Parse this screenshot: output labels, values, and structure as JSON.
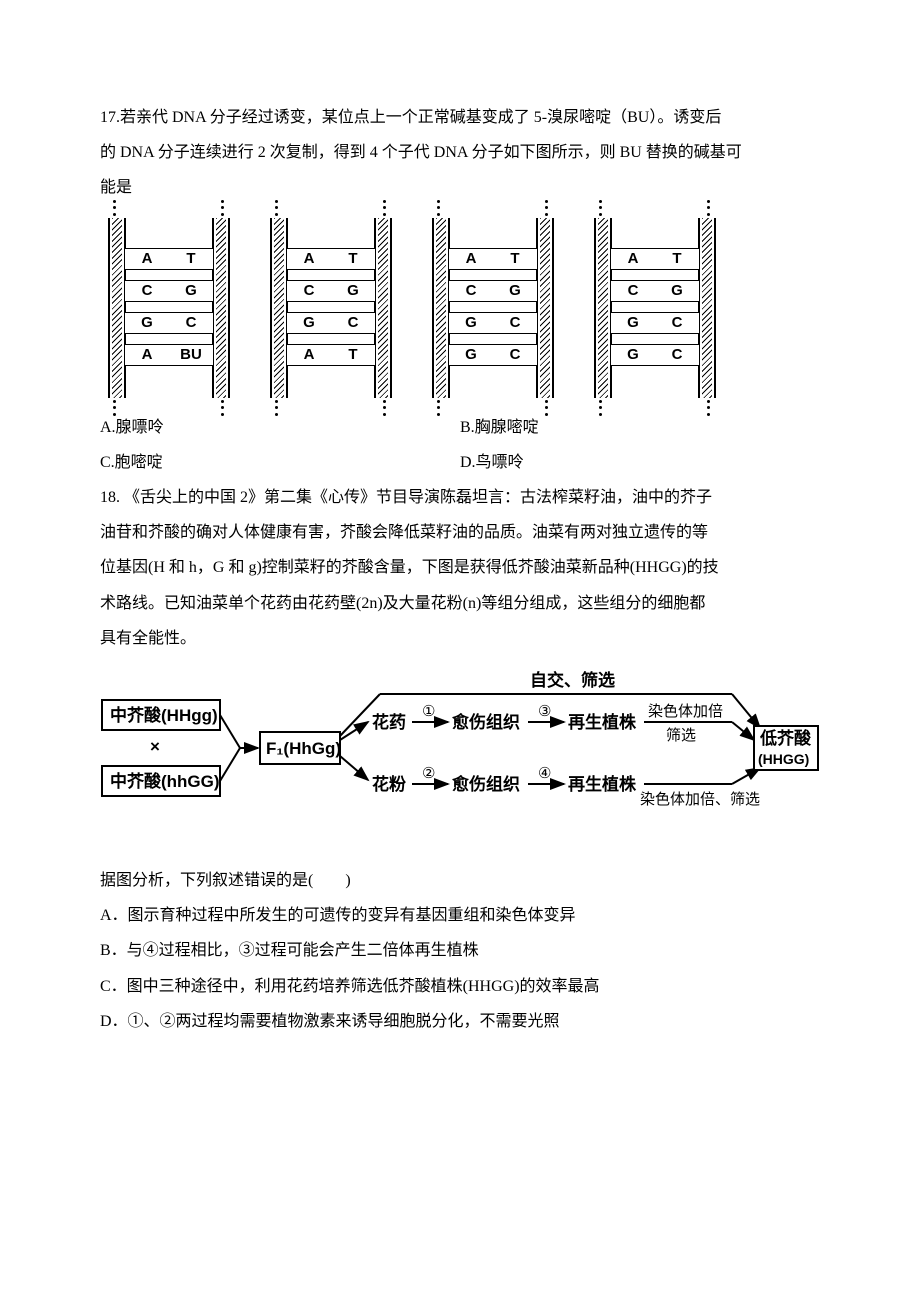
{
  "q17": {
    "stem_l1": "17.若亲代 DNA 分子经过诱变，某位点上一个正常碱基变成了 5-溴尿嘧啶（BU）。诱变后",
    "stem_l2": "的 DNA 分子连续进行 2 次复制，得到 4 个子代 DNA 分子如下图所示，则 BU 替换的碱基可",
    "stem_l3": "能是",
    "dna": [
      [
        [
          "A",
          "T"
        ],
        [
          "C",
          "G"
        ],
        [
          "G",
          "C"
        ],
        [
          "A",
          "BU"
        ]
      ],
      [
        [
          "A",
          "T"
        ],
        [
          "C",
          "G"
        ],
        [
          "G",
          "C"
        ],
        [
          "A",
          "T"
        ]
      ],
      [
        [
          "A",
          "T"
        ],
        [
          "C",
          "G"
        ],
        [
          "G",
          "C"
        ],
        [
          "G",
          "C"
        ]
      ],
      [
        [
          "A",
          "T"
        ],
        [
          "C",
          "G"
        ],
        [
          "G",
          "C"
        ],
        [
          "G",
          "C"
        ]
      ]
    ],
    "optA": "A.腺嘌呤",
    "optB": "B.胸腺嘧啶",
    "optC": "C.胞嘧啶",
    "optD": "D.鸟嘌呤"
  },
  "q18": {
    "stem_l1": "18. 《舌尖上的中国 2》第二集《心传》节目导演陈磊坦言：古法榨菜籽油，油中的芥子",
    "stem_l2": "油苷和芥酸的确对人体健康有害，芥酸会降低菜籽油的品质。油菜有两对独立遗传的等",
    "stem_l3": "位基因(H 和 h，G 和 g)控制菜籽的芥酸含量，下图是获得低芥酸油菜新品种(HHGG)的技",
    "stem_l4": "术路线。已知油菜单个花药由花药壁(2n)及大量花粉(n)等组分组成，这些组分的细胞都",
    "stem_l5": "具有全能性。",
    "flow": {
      "top_label": "自交、筛选",
      "parent1": "中芥酸(HHgg)",
      "cross": "×",
      "parent2": "中芥酸(hhGG)",
      "f1": "F₁(HhGg)",
      "anther": "花药",
      "pollen": "花粉",
      "callus": "愈伤组织",
      "regen": "再生植株",
      "double_sieve": "染色体加倍",
      "sieve": "筛选",
      "double_sieve2": "染色体加倍、筛选",
      "target": "低芥酸",
      "target2": "(HHGG)",
      "n1": "①",
      "n2": "②",
      "n3": "③",
      "n4": "④"
    },
    "tail": "据图分析，下列叙述错误的是(　　)",
    "optA": "A．图示育种过程中所发生的可遗传的变异有基因重组和染色体变异",
    "optB": "B．与④过程相比，③过程可能会产生二倍体再生植株",
    "optC": "C．图中三种途径中，利用花药培养筛选低芥酸植株(HHGG)的效率最高",
    "optD": "D．①、②两过程均需要植物激素来诱导细胞脱分化，不需要光照"
  }
}
